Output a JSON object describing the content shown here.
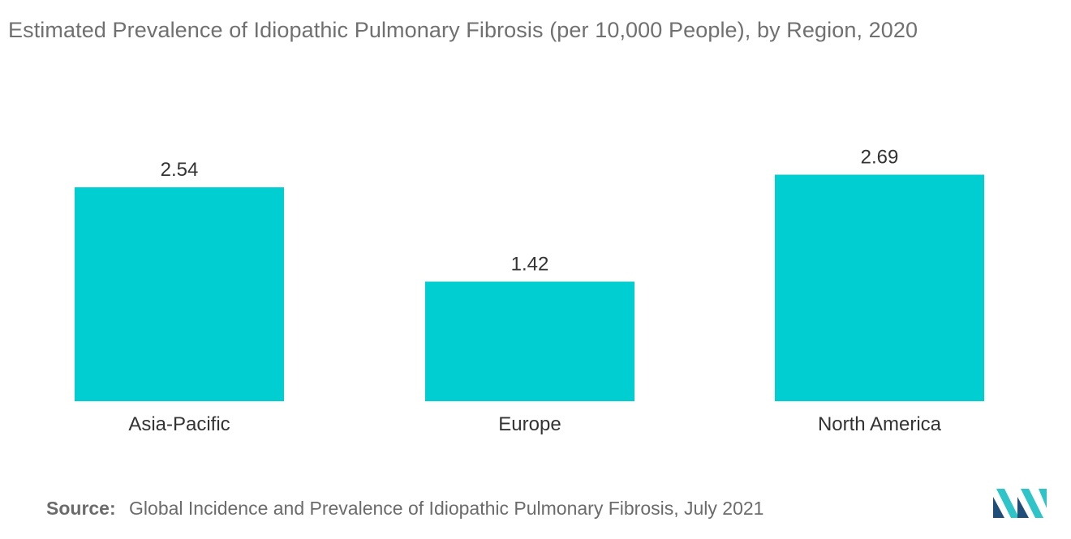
{
  "chart_data": {
    "type": "bar",
    "title": "Estimated Prevalence of Idiopathic Pulmonary Fibrosis (per 10,000 People), by Region, 2020",
    "categories": [
      "Asia-Pacific",
      "Europe",
      "North America"
    ],
    "values": [
      2.54,
      1.42,
      2.69
    ],
    "value_labels": [
      "2.54",
      "1.42",
      "2.69"
    ],
    "xlabel": "",
    "ylabel": "",
    "ylim": [
      0,
      3
    ],
    "grid": false,
    "legend": "none",
    "bar_color": "#00CED1"
  },
  "footer": {
    "source_label": "Source:",
    "source_text": "Global Incidence and Prevalence of Idiopathic Pulmonary Fibrosis, July 2021"
  },
  "logo": {
    "icon": "brand-logo-icon",
    "color_dark": "#1F4E79",
    "color_light": "#2EC4C8"
  }
}
